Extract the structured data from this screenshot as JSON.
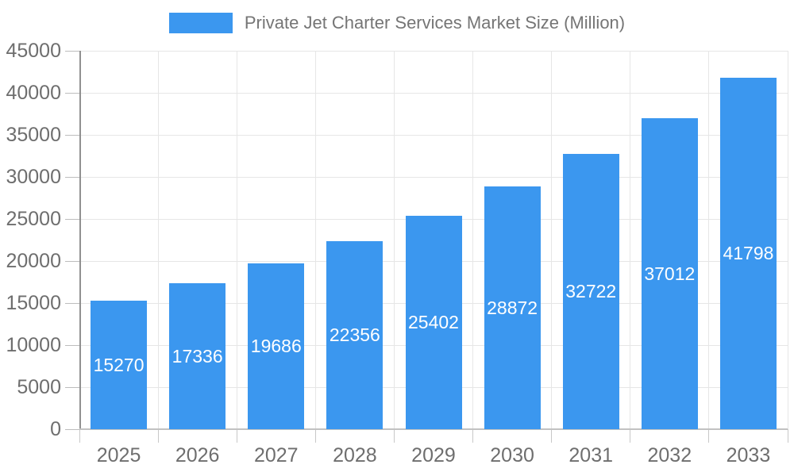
{
  "legend": {
    "label": "Private Jet Charter Services Market Size (Million)"
  },
  "chart_data": {
    "type": "bar",
    "title": "Private Jet Charter Services Market Size (Million)",
    "series_name": "Private Jet Charter Services Market Size (Million)",
    "categories": [
      "2025",
      "2026",
      "2027",
      "2028",
      "2029",
      "2030",
      "2031",
      "2032",
      "2033"
    ],
    "values": [
      15270,
      17336,
      19686,
      22356,
      25402,
      28872,
      32722,
      37012,
      41798
    ],
    "value_labels": [
      "15270",
      "17336",
      "19686",
      "22356",
      "25402",
      "28872",
      "32722",
      "37012",
      "41798"
    ],
    "xlabel": "",
    "ylabel": "",
    "ylim": [
      0,
      45000
    ],
    "ytick_interval": 5000,
    "ytick_labels": [
      "0",
      "5000",
      "10000",
      "15000",
      "20000",
      "25000",
      "30000",
      "35000",
      "40000",
      "45000"
    ],
    "grid": true,
    "legend_position": "top",
    "bar_color": "#3b97ef",
    "value_label_color": "#ffffff",
    "axis_label_color": "#6e6e6e",
    "title_color": "#757575"
  }
}
